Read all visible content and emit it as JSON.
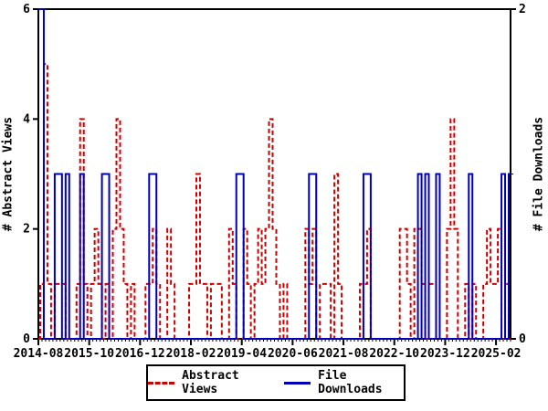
{
  "chart_data": {
    "type": "line",
    "title": "",
    "x_start_month": "2014-08",
    "x_tick_labels": [
      "2014-08",
      "2015-10",
      "2016-12",
      "2018-02",
      "2019-04",
      "2020-06",
      "2021-08",
      "2022-10",
      "2023-12",
      "2025-02"
    ],
    "x_tick_month_indices": [
      0,
      14,
      28,
      42,
      56,
      70,
      84,
      98,
      112,
      126
    ],
    "months_total": 131,
    "left_axis": {
      "label": "# Abstract Views",
      "range": [
        0,
        6
      ],
      "ticks": [
        0,
        2,
        4,
        6
      ],
      "tick_labels": [
        "0",
        "2",
        "4",
        "6"
      ]
    },
    "right_axis": {
      "label": "# File Downloads",
      "range": [
        0,
        2
      ],
      "ticks": [
        0,
        2
      ],
      "tick_labels": [
        "0",
        "2"
      ],
      "minor_ticks": [
        1
      ]
    },
    "grid": false,
    "legend": {
      "position": "bottom",
      "border": true
    },
    "series": [
      {
        "name": "Abstract Views",
        "axis": "left",
        "style": "dashed",
        "color": "#cc0000",
        "values": [
          0,
          1,
          5,
          1,
          0,
          1,
          1,
          1,
          0,
          0,
          0,
          1,
          4,
          1,
          0,
          1,
          2,
          1,
          0,
          1,
          0,
          2,
          4,
          2,
          1,
          0,
          1,
          0,
          0,
          0,
          1,
          1,
          2,
          1,
          0,
          0,
          2,
          1,
          0,
          0,
          0,
          0,
          1,
          1,
          3,
          1,
          1,
          0,
          1,
          1,
          1,
          0,
          0,
          2,
          1,
          0,
          0,
          2,
          1,
          0,
          1,
          2,
          1,
          2,
          4,
          2,
          1,
          0,
          1,
          0,
          0,
          0,
          0,
          0,
          2,
          1,
          2,
          0,
          1,
          1,
          1,
          0,
          3,
          1,
          0,
          0,
          0,
          0,
          0,
          1,
          1,
          2,
          0,
          0,
          0,
          0,
          0,
          0,
          0,
          0,
          2,
          2,
          1,
          0,
          2,
          2,
          1,
          0,
          1,
          1,
          0,
          0,
          0,
          2,
          4,
          2,
          0,
          0,
          1,
          0,
          1,
          0,
          0,
          1,
          2,
          1,
          1,
          2,
          0,
          1,
          0
        ]
      },
      {
        "name": "File Downloads",
        "axis": "right",
        "style": "solid",
        "color": "#0000bb",
        "values": [
          2,
          2,
          0,
          0,
          0,
          1,
          1,
          0,
          1,
          0,
          0,
          0,
          1,
          0,
          0,
          0,
          0,
          0,
          1,
          1,
          0,
          0,
          0,
          0,
          0,
          0,
          0,
          0,
          0,
          0,
          0,
          1,
          1,
          0,
          0,
          0,
          0,
          0,
          0,
          0,
          0,
          0,
          0,
          0,
          0,
          0,
          0,
          0,
          0,
          0,
          0,
          0,
          0,
          0,
          0,
          1,
          1,
          0,
          0,
          0,
          0,
          0,
          0,
          0,
          0,
          0,
          0,
          0,
          0,
          0,
          0,
          0,
          0,
          0,
          0,
          1,
          1,
          0,
          0,
          0,
          0,
          0,
          0,
          0,
          0,
          0,
          0,
          0,
          0,
          0,
          1,
          1,
          0,
          0,
          0,
          0,
          0,
          0,
          0,
          0,
          0,
          0,
          0,
          0,
          0,
          1,
          0,
          1,
          0,
          0,
          1,
          0,
          0,
          0,
          0,
          0,
          0,
          0,
          0,
          1,
          0,
          0,
          0,
          0,
          0,
          0,
          0,
          0,
          1,
          0,
          1
        ]
      }
    ]
  },
  "colors": {
    "abstract_views": "#cc0000",
    "file_downloads": "#0000bb",
    "axis": "#000000",
    "background": "#ffffff"
  }
}
